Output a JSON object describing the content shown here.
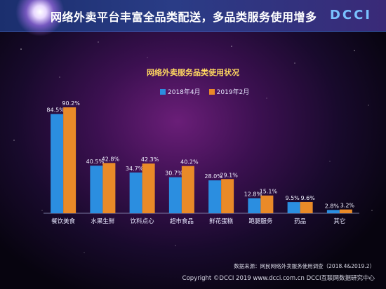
{
  "header": {
    "title": "网络外卖平台丰富全品类配送，多品类服务使用增多",
    "logo": "DCCI"
  },
  "colors": {
    "series_2018": "#2b8ee0",
    "series_2019": "#e98a28",
    "chart_title": "#ffd860"
  },
  "chart_data": {
    "type": "bar",
    "title": "网络外卖服务品类使用状况",
    "categories": [
      "餐饮美食",
      "水果生鲜",
      "饮料点心",
      "超市食品",
      "鲜花蛋糕",
      "跑腿服务",
      "药品",
      "其它"
    ],
    "series": [
      {
        "name": "2018年4月",
        "values": [
          84.5,
          40.5,
          34.7,
          30.7,
          28.0,
          12.8,
          9.5,
          2.8
        ],
        "labels": [
          "84.5%",
          "40.5%",
          "34.7%",
          "30.7%",
          "28.0%",
          "12.8%",
          "9.5%",
          "2.8%"
        ]
      },
      {
        "name": "2019年2月",
        "values": [
          90.2,
          42.8,
          42.3,
          40.2,
          29.1,
          15.1,
          9.6,
          3.2
        ],
        "labels": [
          "90.2%",
          "42.8%",
          "42.3%",
          "40.2%",
          "29.1%",
          "15.1%",
          "9.6%",
          "3.2%"
        ]
      }
    ],
    "ylim": [
      0,
      100
    ],
    "grid": false,
    "legend": "top-center"
  },
  "footer": {
    "source": "数据来源：网民网络外卖服务使用调查（2018.4&2019.2）",
    "copyright": "Copyright ©DCCI 2019   www.dcci.com.cn   DCCI互联网数据研究中心"
  }
}
